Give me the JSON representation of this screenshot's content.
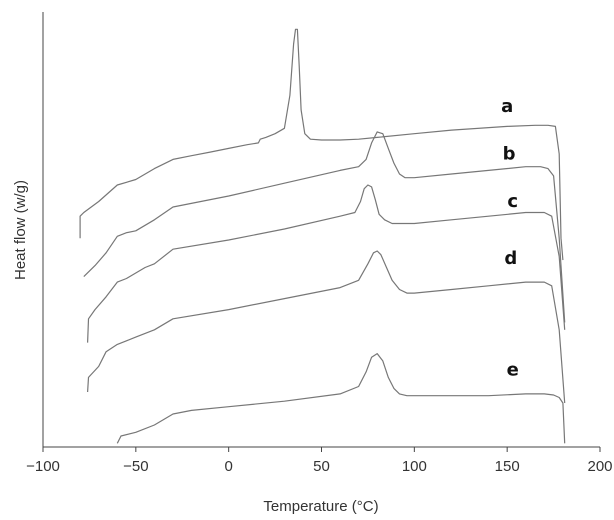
{
  "chart_data": {
    "type": "line",
    "xlabel": "Temperature (°C)",
    "ylabel": "Heat flow (w/g)",
    "xlim": [
      -100,
      200
    ],
    "xticks": [
      "−100",
      "−50",
      "0",
      "50",
      "100",
      "150",
      "200"
    ],
    "y_ticks_shown": false,
    "grid": false,
    "colors": {
      "curve": "#777777",
      "axis": "#444444",
      "label": "#111111"
    },
    "series": [
      {
        "name": "a",
        "x": [
          -80,
          -80,
          -78,
          -70,
          -60,
          -50,
          -40,
          -30,
          -20,
          -10,
          0,
          10,
          16,
          17,
          20,
          25,
          30,
          33,
          35,
          36,
          37,
          38,
          39,
          41,
          44,
          50,
          60,
          70,
          80,
          100,
          120,
          150,
          165,
          172,
          176,
          178,
          179,
          180
        ],
        "y": [
          1.5,
          2.1,
          2.2,
          2.5,
          2.95,
          3.1,
          3.4,
          3.65,
          3.75,
          3.85,
          3.95,
          4.05,
          4.1,
          4.2,
          4.25,
          4.35,
          4.5,
          5.4,
          6.8,
          7.2,
          7.2,
          6.2,
          5.0,
          4.35,
          4.2,
          4.18,
          4.18,
          4.2,
          4.25,
          4.35,
          4.45,
          4.55,
          4.58,
          4.58,
          4.55,
          3.8,
          1.5,
          0.9
        ]
      },
      {
        "name": "b",
        "x": [
          -78,
          -72,
          -66,
          -60,
          -55,
          -50,
          -40,
          -30,
          0,
          30,
          60,
          70,
          74,
          77,
          80,
          83,
          86,
          89,
          92,
          95,
          100,
          120,
          140,
          160,
          168,
          172,
          175,
          178,
          181
        ],
        "y": [
          0.45,
          0.75,
          1.1,
          1.55,
          1.65,
          1.7,
          2.0,
          2.35,
          2.65,
          3.0,
          3.35,
          3.45,
          3.65,
          4.1,
          4.4,
          4.35,
          3.95,
          3.55,
          3.25,
          3.15,
          3.15,
          3.25,
          3.35,
          3.45,
          3.45,
          3.4,
          3.2,
          1.5,
          -0.8
        ]
      },
      {
        "name": "c",
        "x": [
          -76,
          -75.5,
          -72,
          -66,
          -60,
          -55,
          -45,
          -40,
          -30,
          0,
          30,
          60,
          68,
          71,
          73,
          75,
          77,
          79,
          81,
          84,
          88,
          95,
          100,
          120,
          140,
          160,
          170,
          174,
          178,
          181
        ],
        "y": [
          -1.35,
          -0.7,
          -0.45,
          -0.1,
          0.3,
          0.4,
          0.7,
          0.8,
          1.2,
          1.45,
          1.75,
          2.1,
          2.2,
          2.5,
          2.85,
          2.95,
          2.9,
          2.55,
          2.15,
          2.0,
          1.9,
          1.9,
          1.9,
          2.0,
          2.1,
          2.2,
          2.2,
          2.1,
          1.0,
          -1.0
        ]
      },
      {
        "name": "d",
        "x": [
          -76,
          -75.5,
          -70,
          -66,
          -60,
          -55,
          -50,
          -40,
          -30,
          0,
          30,
          60,
          70,
          75,
          78,
          80,
          82,
          85,
          88,
          92,
          96,
          100,
          120,
          140,
          160,
          170,
          174,
          178,
          181
        ],
        "y": [
          -2.7,
          -2.3,
          -2.0,
          -1.6,
          -1.4,
          -1.3,
          -1.2,
          -1.0,
          -0.7,
          -0.45,
          -0.15,
          0.15,
          0.35,
          0.8,
          1.1,
          1.15,
          1.05,
          0.7,
          0.35,
          0.1,
          0.0,
          0.0,
          0.1,
          0.2,
          0.3,
          0.3,
          0.2,
          -1.0,
          -3.0
        ]
      },
      {
        "name": "e",
        "x": [
          -60,
          -58,
          -50,
          -40,
          -30,
          -20,
          0,
          30,
          60,
          70,
          74,
          77,
          80,
          83,
          86,
          89,
          92,
          96,
          100,
          120,
          140,
          160,
          170,
          175,
          178,
          180,
          181
        ],
        "y": [
          -4.1,
          -3.9,
          -3.8,
          -3.6,
          -3.3,
          -3.2,
          -3.1,
          -2.95,
          -2.75,
          -2.55,
          -2.15,
          -1.75,
          -1.65,
          -1.85,
          -2.3,
          -2.6,
          -2.75,
          -2.8,
          -2.8,
          -2.8,
          -2.8,
          -2.75,
          -2.75,
          -2.78,
          -2.85,
          -3.0,
          -4.1
        ]
      }
    ],
    "curve_labels": [
      {
        "text": "a",
        "x": 150,
        "y": 4.95
      },
      {
        "text": "b",
        "x": 151,
        "y": 3.65
      },
      {
        "text": "c",
        "x": 153,
        "y": 2.35
      },
      {
        "text": "d",
        "x": 152,
        "y": 0.8
      },
      {
        "text": "e",
        "x": 153,
        "y": -2.25
      }
    ]
  }
}
